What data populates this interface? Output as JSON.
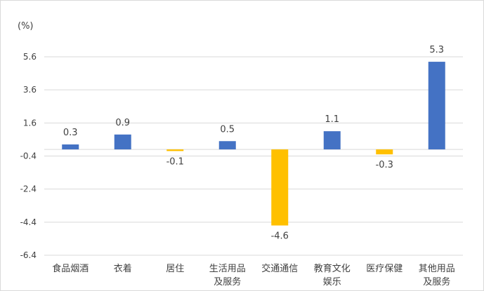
{
  "chart_data": {
    "type": "bar",
    "unit_label": "(%)",
    "categories": [
      [
        "食品烟酒"
      ],
      [
        "衣着"
      ],
      [
        "居住"
      ],
      [
        "生活用品",
        "及服务"
      ],
      [
        "交通通信"
      ],
      [
        "教育文化",
        "娱乐"
      ],
      [
        "医疗保健"
      ],
      [
        "其他用品",
        "及服务"
      ]
    ],
    "values": [
      0.3,
      0.9,
      -0.1,
      0.5,
      -4.6,
      1.1,
      -0.3,
      5.3
    ],
    "value_labels": [
      "0.3",
      "0.9",
      "-0.1",
      "0.5",
      "-4.6",
      "1.1",
      "-0.3",
      "5.3"
    ],
    "y_ticks": [
      {
        "value": 5.6,
        "label": "5.6"
      },
      {
        "value": 3.6,
        "label": "3.6"
      },
      {
        "value": 1.6,
        "label": "1.6"
      },
      {
        "value": -0.4,
        "label": "-0.4"
      },
      {
        "value": -2.4,
        "label": "-2.4"
      },
      {
        "value": -4.4,
        "label": "-4.4"
      },
      {
        "value": -6.4,
        "label": "-6.4"
      }
    ],
    "ylim": [
      -6.4,
      5.6
    ],
    "grid": true,
    "colors": {
      "positive": "#4472C4",
      "negative": "#FFC000",
      "grid": "#d9d9d9",
      "text": "#404040"
    }
  }
}
